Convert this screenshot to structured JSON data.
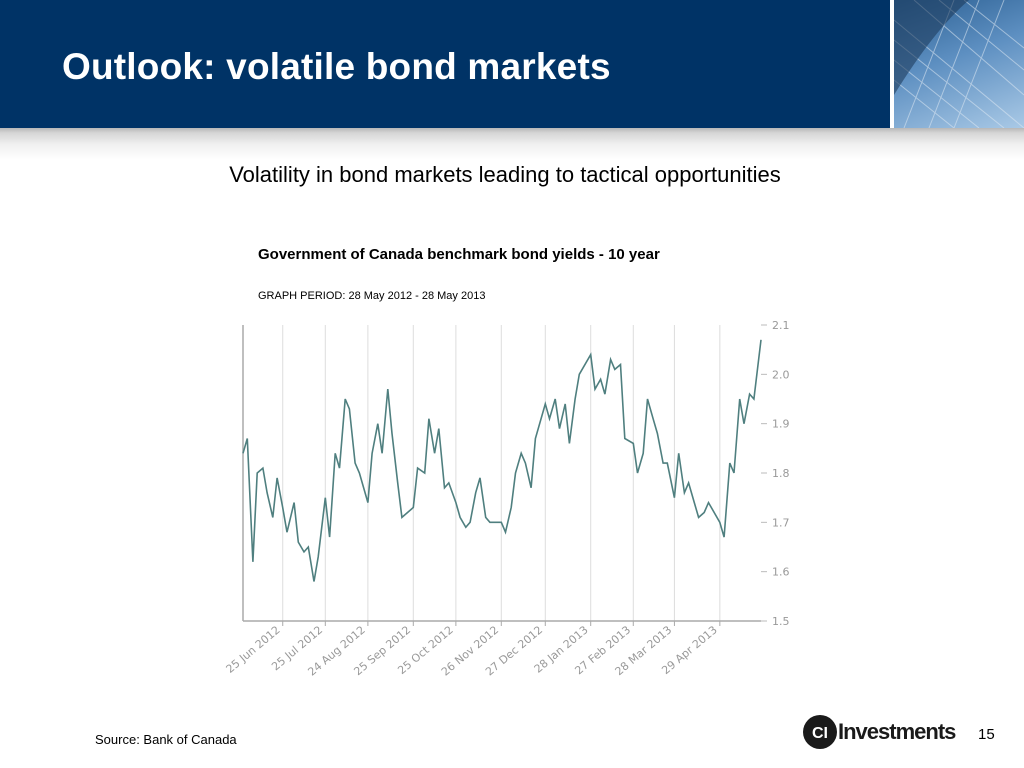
{
  "slide": {
    "title": "Outlook: volatile bond markets",
    "subtitle": "Volatility in bond markets leading to tactical opportunities",
    "source": "Source: Bank of Canada",
    "page_number": "15",
    "logo_text": "Investments",
    "logo_mark": "CI"
  },
  "colors": {
    "header": "#003366",
    "series": "#4f7f7f",
    "grid": "#dddddd",
    "tick_text": "#999999"
  },
  "chart_data": {
    "type": "line",
    "title": "Government of Canada benchmark bond yields - 10 year",
    "subtitle": "GRAPH PERIOD: 28 May 2012 - 28 May 2013",
    "ylim": [
      1.5,
      2.1
    ],
    "yticks": [
      "1.5",
      "1.6",
      "1.7",
      "1.8",
      "1.9",
      "2.0",
      "2.1"
    ],
    "xticks": [
      "25 Jun 2012",
      "25 Jul 2012",
      "24 Aug 2012",
      "25 Sep 2012",
      "25 Oct 2012",
      "26 Nov 2012",
      "27 Dec 2012",
      "28 Jan 2013",
      "27 Feb 2013",
      "28 Mar 2013",
      "29 Apr 2013"
    ],
    "x": [
      "2012-05-28",
      "2012-05-31",
      "2012-06-04",
      "2012-06-07",
      "2012-06-11",
      "2012-06-14",
      "2012-06-18",
      "2012-06-21",
      "2012-06-25",
      "2012-06-28",
      "2012-07-03",
      "2012-07-06",
      "2012-07-10",
      "2012-07-13",
      "2012-07-17",
      "2012-07-20",
      "2012-07-25",
      "2012-07-28",
      "2012-08-01",
      "2012-08-04",
      "2012-08-08",
      "2012-08-11",
      "2012-08-15",
      "2012-08-18",
      "2012-08-24",
      "2012-08-27",
      "2012-08-31",
      "2012-09-03",
      "2012-09-07",
      "2012-09-10",
      "2012-09-14",
      "2012-09-17",
      "2012-09-25",
      "2012-09-28",
      "2012-10-03",
      "2012-10-06",
      "2012-10-10",
      "2012-10-13",
      "2012-10-17",
      "2012-10-20",
      "2012-10-25",
      "2012-10-28",
      "2012-11-01",
      "2012-11-04",
      "2012-11-08",
      "2012-11-11",
      "2012-11-15",
      "2012-11-18",
      "2012-11-26",
      "2012-11-29",
      "2012-12-03",
      "2012-12-06",
      "2012-12-10",
      "2012-12-13",
      "2012-12-17",
      "2012-12-20",
      "2012-12-27",
      "2012-12-30",
      "2013-01-03",
      "2013-01-06",
      "2013-01-10",
      "2013-01-13",
      "2013-01-17",
      "2013-01-20",
      "2013-01-28",
      "2013-01-31",
      "2013-02-04",
      "2013-02-07",
      "2013-02-11",
      "2013-02-14",
      "2013-02-18",
      "2013-02-21",
      "2013-02-27",
      "2013-03-02",
      "2013-03-06",
      "2013-03-09",
      "2013-03-13",
      "2013-03-16",
      "2013-03-20",
      "2013-03-23",
      "2013-03-28",
      "2013-03-31",
      "2013-04-04",
      "2013-04-07",
      "2013-04-11",
      "2013-04-14",
      "2013-04-18",
      "2013-04-21",
      "2013-04-29",
      "2013-05-02",
      "2013-05-06",
      "2013-05-09",
      "2013-05-13",
      "2013-05-16",
      "2013-05-20",
      "2013-05-23",
      "2013-05-28"
    ],
    "y": [
      1.84,
      1.87,
      1.62,
      1.8,
      1.81,
      1.76,
      1.71,
      1.79,
      1.73,
      1.68,
      1.74,
      1.66,
      1.64,
      1.65,
      1.58,
      1.63,
      1.75,
      1.67,
      1.84,
      1.81,
      1.95,
      1.93,
      1.82,
      1.8,
      1.74,
      1.84,
      1.9,
      1.84,
      1.97,
      1.88,
      1.78,
      1.71,
      1.73,
      1.81,
      1.8,
      1.91,
      1.84,
      1.89,
      1.77,
      1.78,
      1.74,
      1.71,
      1.69,
      1.7,
      1.76,
      1.79,
      1.71,
      1.7,
      1.7,
      1.68,
      1.73,
      1.8,
      1.84,
      1.82,
      1.77,
      1.87,
      1.94,
      1.91,
      1.95,
      1.89,
      1.94,
      1.86,
      1.95,
      2.0,
      2.04,
      1.97,
      1.99,
      1.96,
      2.03,
      2.01,
      2.02,
      1.87,
      1.86,
      1.8,
      1.84,
      1.95,
      1.91,
      1.88,
      1.82,
      1.82,
      1.75,
      1.84,
      1.76,
      1.78,
      1.74,
      1.71,
      1.72,
      1.74,
      1.7,
      1.67,
      1.82,
      1.8,
      1.95,
      1.9,
      1.96,
      1.95,
      2.07
    ]
  }
}
